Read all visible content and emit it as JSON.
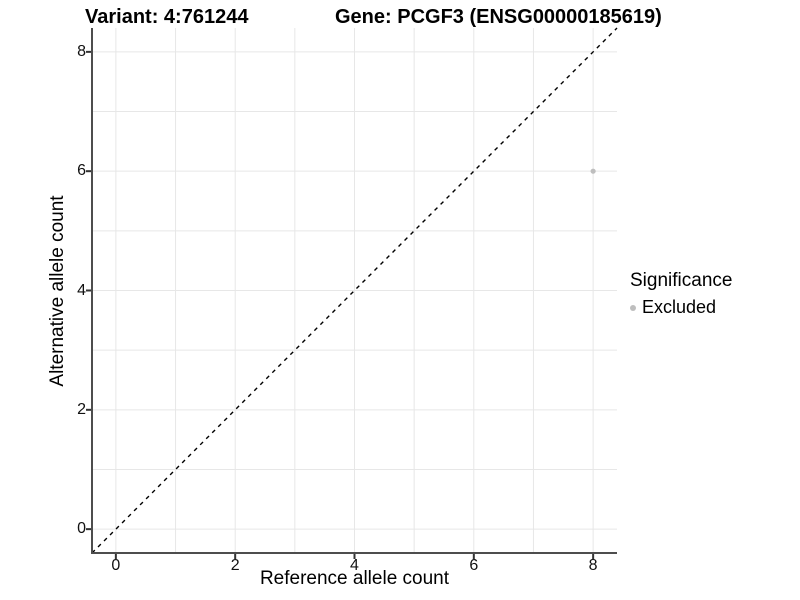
{
  "titles": {
    "variant": "Variant: 4:761244",
    "gene": "Gene: PCGF3 (ENSG00000185619)"
  },
  "axes": {
    "x_label": "Reference allele count",
    "y_label": "Alternative allele count"
  },
  "legend": {
    "title": "Significance",
    "items": [
      {
        "label": "Excluded",
        "color": "#bebebe"
      }
    ]
  },
  "colors": {
    "background": "#ffffff",
    "grid": "#e7e7e7",
    "axis_line": "#4d4d4d",
    "tick_mark": "#333333",
    "text": "#000000",
    "reference_line": "#000000",
    "point": "#bebebe"
  },
  "chart_data": {
    "type": "scatter",
    "title": "Variant: 4:761244    Gene: PCGF3 (ENSG00000185619)",
    "xlabel": "Reference allele count",
    "ylabel": "Alternative allele count",
    "xlim": [
      -0.4,
      8.4
    ],
    "ylim": [
      -0.4,
      8.4
    ],
    "x_ticks": [
      0,
      2,
      4,
      6,
      8
    ],
    "y_ticks": [
      0,
      2,
      4,
      6,
      8
    ],
    "grid_step": 1,
    "grid_on": true,
    "legend_position": "right",
    "series": [
      {
        "name": "Excluded",
        "color": "#bebebe",
        "marker": "circle",
        "points": [
          {
            "x": 8,
            "y": 6
          }
        ]
      }
    ],
    "reference_line": {
      "type": "identity",
      "style": "dashed",
      "from": [
        -0.4,
        -0.4
      ],
      "to": [
        8.4,
        8.4
      ],
      "color": "#000000"
    }
  }
}
